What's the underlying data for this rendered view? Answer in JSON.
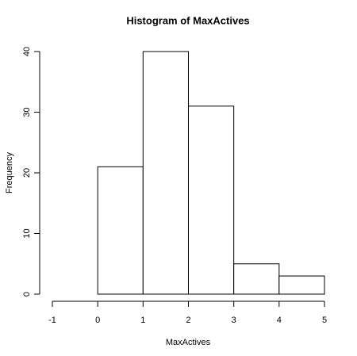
{
  "chart_data": {
    "type": "histogram",
    "title": "Histogram of MaxActives",
    "x_label": "MaxActives",
    "y_label": "Frequency",
    "bins": [
      -1,
      0,
      1,
      2,
      3,
      4,
      5
    ],
    "values": [
      0,
      21,
      40,
      31,
      5,
      3
    ],
    "color": "#ffffff",
    "xlim": [
      -1,
      5
    ],
    "xticks": [
      -1,
      0,
      1,
      2,
      3,
      4,
      5
    ],
    "ylim": [
      0,
      40
    ],
    "yticks": [
      0,
      10,
      20,
      30,
      40
    ]
  }
}
